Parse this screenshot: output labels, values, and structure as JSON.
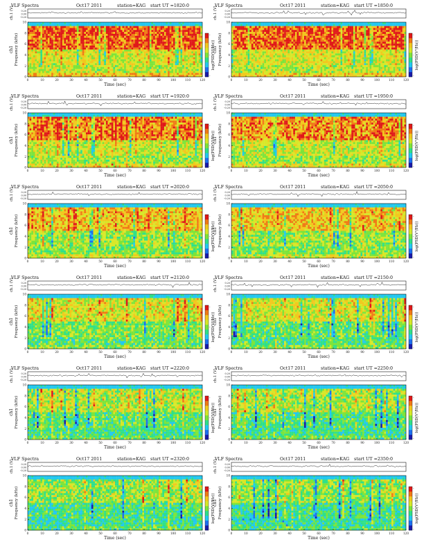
{
  "colors": {
    "scale": [
      "#1a1aa8",
      "#1e6ff0",
      "#22c8f0",
      "#2fe08a",
      "#7de43a",
      "#d7e829",
      "#f2c81d",
      "#f07a16",
      "#e01818"
    ],
    "trace": "#222222"
  },
  "axis_text": {
    "ch1_label": "ch.1 (V)",
    "freq_label_a": "ch1",
    "freq_label_b": "Frequency (kHz)",
    "time_label": "Time (sec)",
    "colorbar_label": "log(PSD(V²/Hz))"
  },
  "chart_data": [
    {
      "type": "heatmap",
      "header": {
        "title": "VLF Spectra",
        "date": "Oct17 2011",
        "station": "station=KAG",
        "start": "start UT =1820:0"
      },
      "xlabel": "Time (sec)",
      "ylabel": "Frequency (kHz)",
      "xlim": [
        0,
        120
      ],
      "ylim": [
        0,
        10
      ],
      "x_ticks": [
        0,
        10,
        20,
        30,
        40,
        50,
        60,
        70,
        80,
        90,
        100,
        110,
        120
      ],
      "y_ticks": [
        0,
        2,
        4,
        6,
        8,
        10
      ],
      "trace_ticks": [
        "0.20",
        "0.00",
        "-0.20"
      ],
      "colorbar_ticks": [
        "-",
        "-",
        "-"
      ],
      "activity": 0.95
    },
    {
      "type": "heatmap",
      "header": {
        "title": "VLF Spectra",
        "date": "Oct17 2011",
        "station": "station=KAG",
        "start": "start UT =1850:0"
      },
      "xlabel": "Time (sec)",
      "ylabel": "Frequency (kHz)",
      "xlim": [
        0,
        120
      ],
      "ylim": [
        0,
        10
      ],
      "x_ticks": [
        0,
        10,
        20,
        30,
        40,
        50,
        60,
        70,
        80,
        90,
        100,
        110,
        120
      ],
      "y_ticks": [
        0,
        2,
        4,
        6,
        8,
        10
      ],
      "trace_ticks": [
        "0.20",
        "0.00",
        "-0.20"
      ],
      "colorbar_ticks": [
        "-",
        "-",
        "-"
      ],
      "activity": 0.93
    },
    {
      "type": "heatmap",
      "header": {
        "title": "VLF Spectra",
        "date": "Oct17 2011",
        "station": "station=KAG",
        "start": "start UT =1920:0"
      },
      "xlabel": "Time (sec)",
      "ylabel": "Frequency (kHz)",
      "xlim": [
        0,
        120
      ],
      "ylim": [
        0,
        10
      ],
      "x_ticks": [
        0,
        10,
        20,
        30,
        40,
        50,
        60,
        70,
        80,
        90,
        100,
        110,
        120
      ],
      "y_ticks": [
        0,
        2,
        4,
        6,
        8,
        10
      ],
      "trace_ticks": [
        "0.20",
        "0.00",
        "-0.20"
      ],
      "colorbar_ticks": [
        "-",
        "-",
        "-"
      ],
      "activity": 0.82
    },
    {
      "type": "heatmap",
      "header": {
        "title": "VLF Spectra",
        "date": "Oct17 2011",
        "station": "station=KAG",
        "start": "start UT =1950:0"
      },
      "xlabel": "Time (sec)",
      "ylabel": "Frequency (kHz)",
      "xlim": [
        0,
        120
      ],
      "ylim": [
        0,
        10
      ],
      "x_ticks": [
        0,
        10,
        20,
        30,
        40,
        50,
        60,
        70,
        80,
        90,
        100,
        110,
        120
      ],
      "y_ticks": [
        0,
        2,
        4,
        6,
        8,
        10
      ],
      "trace_ticks": [
        "0.20",
        "0.00",
        "-0.20"
      ],
      "colorbar_ticks": [
        "-",
        "-",
        "-"
      ],
      "activity": 0.8
    },
    {
      "type": "heatmap",
      "header": {
        "title": "VLF Spectra",
        "date": "Oct17 2011",
        "station": "station=KAG",
        "start": "start UT =2020:0"
      },
      "xlabel": "Time (sec)",
      "ylabel": "Frequency (kHz)",
      "xlim": [
        0,
        120
      ],
      "ylim": [
        0,
        10
      ],
      "x_ticks": [
        0,
        10,
        20,
        30,
        40,
        50,
        60,
        70,
        80,
        90,
        100,
        110,
        120
      ],
      "y_ticks": [
        0,
        2,
        4,
        6,
        8,
        10
      ],
      "trace_ticks": [
        "0.20",
        "0.00",
        "-0.20"
      ],
      "colorbar_ticks": [
        "-",
        "-",
        "-"
      ],
      "activity": 0.68
    },
    {
      "type": "heatmap",
      "header": {
        "title": "VLF Spectra",
        "date": "Oct17 2011",
        "station": "station=KAG",
        "start": "start UT =2050:0"
      },
      "xlabel": "Time (sec)",
      "ylabel": "Frequency (kHz)",
      "xlim": [
        0,
        120
      ],
      "ylim": [
        0,
        10
      ],
      "x_ticks": [
        0,
        10,
        20,
        30,
        40,
        50,
        60,
        70,
        80,
        90,
        100,
        110,
        120
      ],
      "y_ticks": [
        0,
        2,
        4,
        6,
        8,
        10
      ],
      "trace_ticks": [
        "0.20",
        "0.00",
        "-0.20"
      ],
      "colorbar_ticks": [
        "-",
        "-",
        "-"
      ],
      "activity": 0.66
    },
    {
      "type": "heatmap",
      "header": {
        "title": "VLF Spectra",
        "date": "Oct17 2011",
        "station": "station=KAG",
        "start": "start UT =2120:0"
      },
      "xlabel": "Time (sec)",
      "ylabel": "Frequency (kHz)",
      "xlim": [
        0,
        120
      ],
      "ylim": [
        0,
        10
      ],
      "x_ticks": [
        0,
        10,
        20,
        30,
        40,
        50,
        60,
        70,
        80,
        90,
        100,
        110,
        120
      ],
      "y_ticks": [
        0,
        2,
        4,
        6,
        8,
        10
      ],
      "trace_ticks": [
        "0.20",
        "0.00",
        "-0.20"
      ],
      "colorbar_ticks": [
        "-",
        "-",
        "-"
      ],
      "activity": 0.52
    },
    {
      "type": "heatmap",
      "header": {
        "title": "VLF Spectra",
        "date": "Oct17 2011",
        "station": "station=KAG",
        "start": "start UT =2150:0"
      },
      "xlabel": "Time (sec)",
      "ylabel": "Frequency (kHz)",
      "xlim": [
        0,
        120
      ],
      "ylim": [
        0,
        10
      ],
      "x_ticks": [
        0,
        10,
        20,
        30,
        40,
        50,
        60,
        70,
        80,
        90,
        100,
        110,
        120
      ],
      "y_ticks": [
        0,
        2,
        4,
        6,
        8,
        10
      ],
      "trace_ticks": [
        "0.20",
        "0.00",
        "-0.20"
      ],
      "colorbar_ticks": [
        "-",
        "-",
        "-"
      ],
      "activity": 0.48
    },
    {
      "type": "heatmap",
      "header": {
        "title": "VLF Spectra",
        "date": "Oct17 2011",
        "station": "station=KAG",
        "start": "start UT =2220:0"
      },
      "xlabel": "Time (sec)",
      "ylabel": "Frequency (kHz)",
      "xlim": [
        0,
        120
      ],
      "ylim": [
        0,
        10
      ],
      "x_ticks": [
        0,
        10,
        20,
        30,
        40,
        50,
        60,
        70,
        80,
        90,
        100,
        110,
        120
      ],
      "y_ticks": [
        0,
        2,
        4,
        6,
        8,
        10
      ],
      "trace_ticks": [
        "0.20",
        "0.00",
        "-0.20"
      ],
      "colorbar_ticks": [
        "-",
        "-",
        "-"
      ],
      "activity": 0.4
    },
    {
      "type": "heatmap",
      "header": {
        "title": "VLF Spectra",
        "date": "Oct17 2011",
        "station": "station=KAG",
        "start": "start UT =2250:0"
      },
      "xlabel": "Time (sec)",
      "ylabel": "Frequency (kHz)",
      "xlim": [
        0,
        120
      ],
      "ylim": [
        0,
        10
      ],
      "x_ticks": [
        0,
        10,
        20,
        30,
        40,
        50,
        60,
        70,
        80,
        90,
        100,
        110,
        120
      ],
      "y_ticks": [
        0,
        2,
        4,
        6,
        8,
        10
      ],
      "trace_ticks": [
        "0.20",
        "0.00",
        "-0.20"
      ],
      "colorbar_ticks": [
        "-",
        "-",
        "-"
      ],
      "activity": 0.38
    },
    {
      "type": "heatmap",
      "header": {
        "title": "VLF Spectra",
        "date": "Oct17 2011",
        "station": "station=KAG",
        "start": "start UT =2320:0"
      },
      "xlabel": "Time (sec)",
      "ylabel": "Frequency (kHz)",
      "xlim": [
        0,
        120
      ],
      "ylim": [
        0,
        10
      ],
      "x_ticks": [
        0,
        10,
        20,
        30,
        40,
        50,
        60,
        70,
        80,
        90,
        100,
        110,
        120
      ],
      "y_ticks": [
        0,
        2,
        4,
        6,
        8,
        10
      ],
      "trace_ticks": [
        "0.20",
        "0.00",
        "-0.20"
      ],
      "colorbar_ticks": [
        "-",
        "-",
        "-"
      ],
      "activity": 0.34
    },
    {
      "type": "heatmap",
      "header": {
        "title": "VLF Spectra",
        "date": "Oct17 2011",
        "station": "station=KAG",
        "start": "start UT =2350:0"
      },
      "xlabel": "Time (sec)",
      "ylabel": "Frequency (kHz)",
      "xlim": [
        0,
        120
      ],
      "ylim": [
        0,
        10
      ],
      "x_ticks": [
        0,
        10,
        20,
        30,
        40,
        50,
        60,
        70,
        80,
        90,
        100,
        110,
        120
      ],
      "y_ticks": [
        0,
        2,
        4,
        6,
        8,
        10
      ],
      "trace_ticks": [
        "0.20",
        "0.00",
        "-0.20"
      ],
      "colorbar_ticks": [
        "-",
        "-",
        "-"
      ],
      "activity": 0.3
    }
  ]
}
